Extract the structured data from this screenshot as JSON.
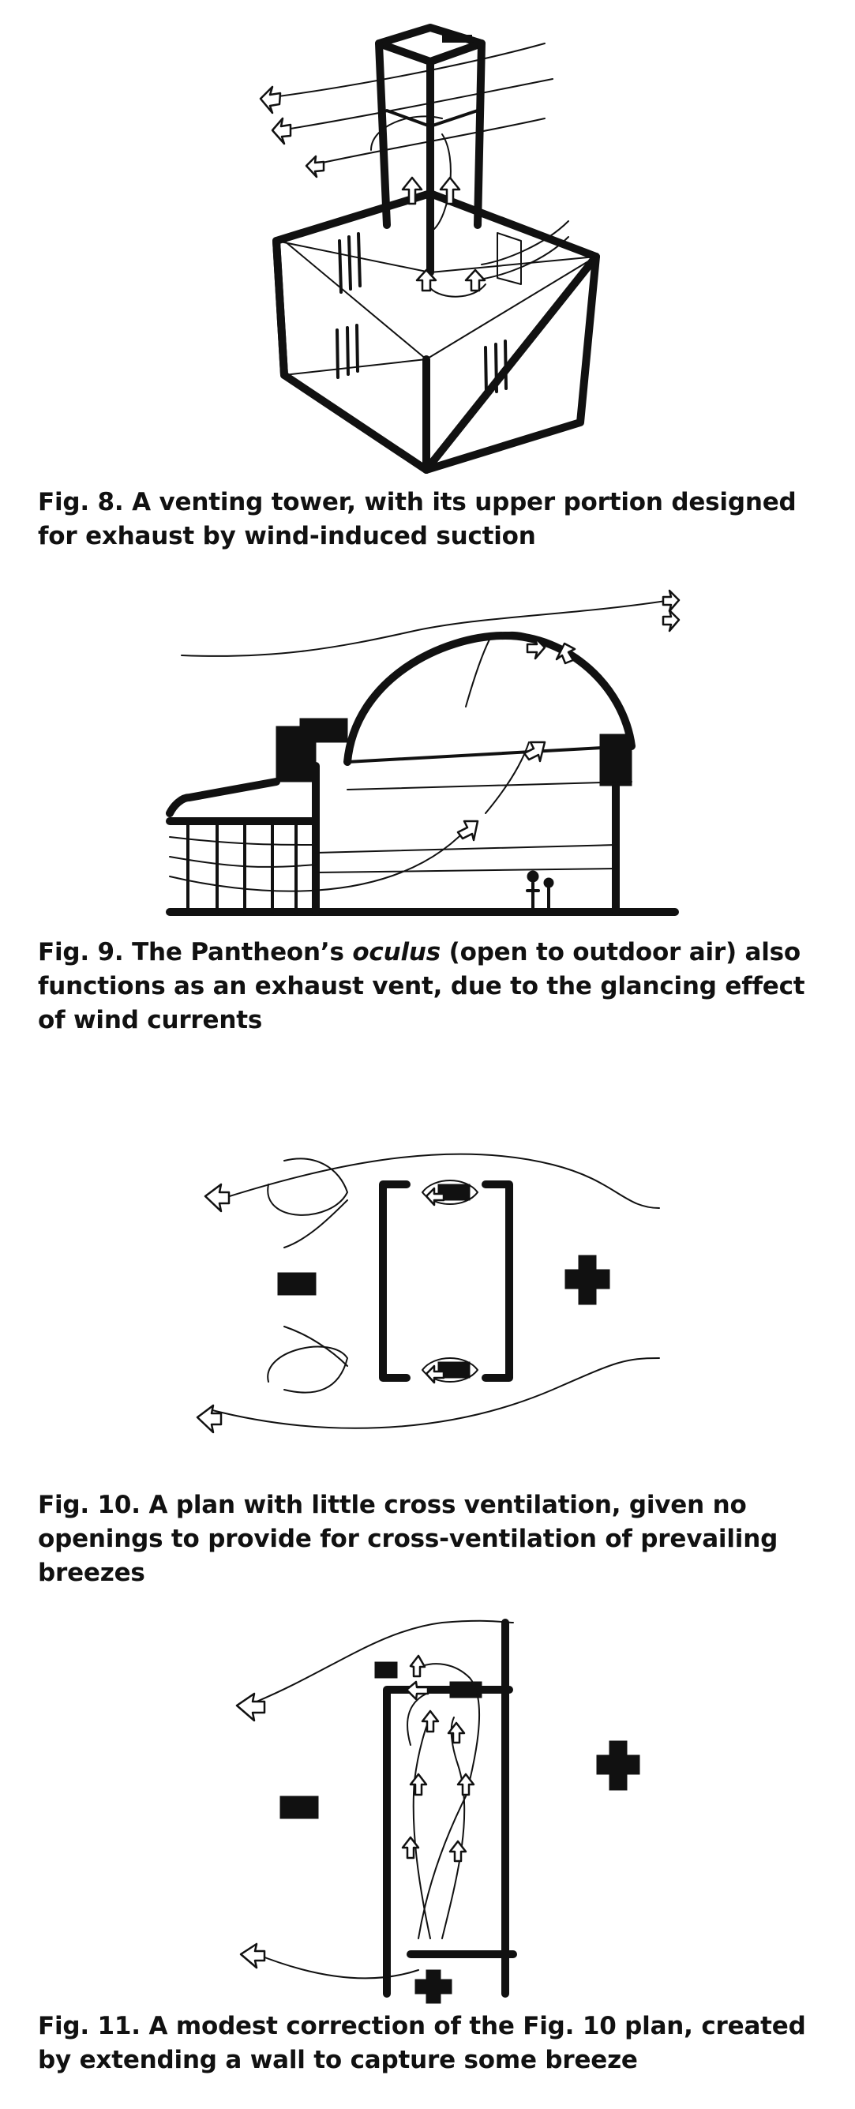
{
  "figures": [
    {
      "id": "fig8",
      "caption_prefix": "Fig. 8.",
      "caption_text": "A venting tower, with its upper portion designed for exhaust by wind-induced suction"
    },
    {
      "id": "fig9",
      "caption_prefix": "Fig. 9.",
      "caption_before": "The Pantheon’s",
      "caption_italic": "oculus",
      "caption_after": "(open to outdoor air) also functions as an exhaust vent, due to the glancing effect of wind currents"
    },
    {
      "id": "fig10",
      "caption_prefix": "Fig. 10.",
      "caption_text": "A plan with little cross ventilation, given no openings to provide for cross-ventilation of prevailing breezes"
    },
    {
      "id": "fig11",
      "caption_prefix": "Fig. 11.",
      "caption_text": "A modest correction of the Fig. 10 plan, created by extending a wall to capture some breeze"
    }
  ]
}
